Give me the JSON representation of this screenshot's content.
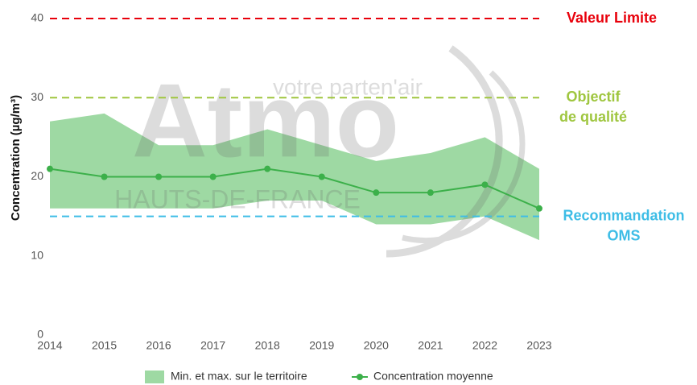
{
  "chart_data": {
    "type": "line",
    "ylabel": "Concentration (µg/m³)",
    "categories": [
      "2014",
      "2015",
      "2016",
      "2017",
      "2018",
      "2019",
      "2020",
      "2021",
      "2022",
      "2023"
    ],
    "series": [
      {
        "name": "Concentration moyenne",
        "color": "#3cb04a",
        "values": [
          21,
          20,
          20,
          20,
          21,
          20,
          18,
          18,
          19,
          16
        ]
      }
    ],
    "band": {
      "name": "Min. et max. sur le territoire",
      "color": "#9ed9a3",
      "min": [
        16,
        16,
        16,
        16,
        17,
        17,
        14,
        14,
        15,
        12
      ],
      "max": [
        27,
        28,
        24,
        24,
        26,
        24,
        22,
        23,
        25,
        21
      ]
    },
    "reference_lines": [
      {
        "label": [
          "Valeur Limite"
        ],
        "value": 40,
        "color": "#e8000b"
      },
      {
        "label": [
          "Objectif",
          "de qualité"
        ],
        "value": 30,
        "color": "#9fc63f"
      },
      {
        "label": [
          "Recommandation",
          "OMS"
        ],
        "value": 15,
        "color": "#3ebde6"
      }
    ],
    "watermark": {
      "logo": "Atmo",
      "region": "HAUTS-DE-FRANCE",
      "tagline": "votre parten'air"
    },
    "ylim": [
      0,
      40
    ],
    "yticks": [
      0,
      10,
      20,
      30,
      40
    ],
    "legend": "bottom"
  }
}
